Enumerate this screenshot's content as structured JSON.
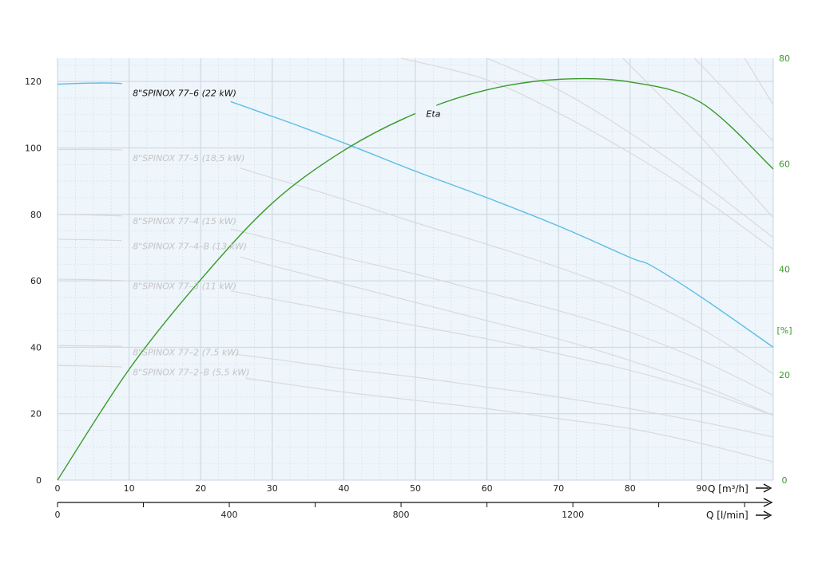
{
  "chart_data": {
    "type": "line",
    "x_axis": {
      "label": "Q [m³/h]",
      "range": [
        0,
        100
      ],
      "ticks": [
        "0",
        "10",
        "20",
        "30",
        "40",
        "50",
        "60",
        "70",
        "80",
        "90"
      ]
    },
    "x2_axis": {
      "label": "Q [l/min]",
      "range": [
        0,
        1666.7
      ],
      "ticks": [
        "0",
        "400",
        "800",
        "1200"
      ]
    },
    "y_axis": {
      "range": [
        0,
        127
      ],
      "ticks": [
        "0",
        "20",
        "40",
        "60",
        "80",
        "100",
        "120"
      ]
    },
    "y2_axis": {
      "label": "[%]",
      "range": [
        0,
        80
      ],
      "ticks": [
        "0",
        "20",
        "40",
        "60",
        "80"
      ]
    },
    "grid": true,
    "colors": {
      "background": "#eef5fb",
      "grid_major": "#c9d5df",
      "grid_minor": "#d8e2ea",
      "highlight": "#5bbde6",
      "faded": "#d8d8d8",
      "faded_label": "#c4c4c4",
      "eta": "#3a9a2a"
    },
    "series": [
      {
        "name": "8\"SPINOX 77–6 (22 kW)",
        "highlight": true,
        "label_at": [
          10.5,
          116.5
        ],
        "x": [
          0,
          5,
          10,
          20,
          30,
          40,
          50,
          60,
          70,
          80,
          83,
          90,
          100
        ],
        "y": [
          119.2,
          119.5,
          119.2,
          116.5,
          109.5,
          101.5,
          93,
          85,
          76.5,
          67,
          64.5,
          55,
          40
        ]
      },
      {
        "name": "8\"SPINOX 77–5 (18,5 kW)",
        "highlight": false,
        "label_at": [
          10.5,
          97
        ],
        "x": [
          0,
          10,
          20,
          30,
          40,
          50,
          60,
          70,
          80,
          90,
          100
        ],
        "y": [
          99.5,
          99.3,
          97,
          91,
          84.5,
          77.5,
          71,
          64,
          56,
          45.5,
          32
        ]
      },
      {
        "name": "8\"SPINOX 77–4 (15 kW)",
        "highlight": false,
        "label_at": [
          10.5,
          78
        ],
        "x": [
          0,
          10,
          20,
          30,
          40,
          50,
          60,
          70,
          80,
          90,
          100
        ],
        "y": [
          80,
          79.4,
          77.5,
          72.5,
          67,
          62,
          56.5,
          51,
          44.5,
          36,
          25.5
        ]
      },
      {
        "name": "8\"SPINOX 77–4–B (13 kW)",
        "highlight": false,
        "label_at": [
          10.5,
          70.5
        ],
        "x": [
          0,
          10,
          20,
          30,
          40,
          50,
          60,
          70,
          80,
          90,
          100
        ],
        "y": [
          72.5,
          72,
          70,
          64.5,
          59,
          53.5,
          48,
          42.5,
          36,
          28.5,
          19.5
        ]
      },
      {
        "name": "8\"SPINOX 77–3 (11 kW)",
        "highlight": false,
        "label_at": [
          10.5,
          58.5
        ],
        "x": [
          0,
          10,
          20,
          30,
          40,
          50,
          60,
          70,
          80,
          90,
          100
        ],
        "y": [
          60.5,
          60,
          58.5,
          54.5,
          50.5,
          46.5,
          42.5,
          38,
          33,
          27,
          19.5
        ]
      },
      {
        "name": "8\"SPINOX 77–2 (7,5 kW)",
        "highlight": false,
        "label_at": [
          10.5,
          38.5
        ],
        "x": [
          0,
          10,
          20,
          30,
          40,
          50,
          60,
          70,
          80,
          90,
          100
        ],
        "y": [
          40.5,
          40.2,
          39,
          36.5,
          33.5,
          31,
          28,
          25,
          21.5,
          17.5,
          13
        ]
      },
      {
        "name": "8\"SPINOX 77–2–B (5,5 kW)",
        "highlight": false,
        "label_at": [
          10.5,
          32.5
        ],
        "x": [
          0,
          10,
          20,
          30,
          40,
          50,
          60,
          70,
          80,
          90,
          100
        ],
        "y": [
          34.5,
          34,
          32.5,
          29.5,
          26.5,
          24,
          21.5,
          18.5,
          15.5,
          11,
          5.5
        ]
      },
      {
        "name": "",
        "highlight": false,
        "x": [
          48,
          60,
          70,
          80,
          90,
          100
        ],
        "y": [
          127,
          120.5,
          110.5,
          98.5,
          85,
          69.5
        ]
      },
      {
        "name": "",
        "highlight": false,
        "x": [
          60,
          70,
          80,
          90,
          100
        ],
        "y": [
          127,
          117.5,
          104.5,
          89.5,
          73
        ]
      },
      {
        "name": "",
        "highlight": false,
        "x": [
          79,
          85,
          90,
          95,
          100
        ],
        "y": [
          127,
          114,
          103,
          91,
          79
        ]
      },
      {
        "name": "",
        "highlight": false,
        "x": [
          89,
          93,
          96,
          100
        ],
        "y": [
          127,
          118,
          111,
          102
        ]
      },
      {
        "name": "",
        "highlight": false,
        "x": [
          96,
          98,
          100
        ],
        "y": [
          127,
          120,
          113
        ]
      },
      {
        "name": "Eta",
        "eta": true,
        "label_at": [
          51.5,
          69.5
        ],
        "x": [
          0,
          10,
          20,
          30,
          40,
          50,
          60,
          70,
          80,
          90,
          100
        ],
        "y": [
          0,
          21,
          38,
          52.5,
          62.5,
          69.5,
          74,
          76,
          75.5,
          71.5,
          59
        ]
      }
    ]
  }
}
